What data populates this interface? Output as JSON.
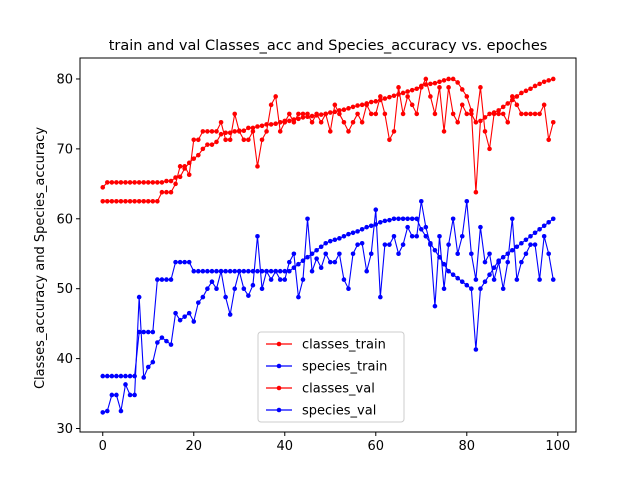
{
  "chart_data": {
    "type": "line",
    "title": "train and val Classes_acc and Species_accuracy vs. epoches",
    "xlabel": "",
    "ylabel": "Classes_accuracy and Species_accuracy",
    "xlim": [
      -5,
      104
    ],
    "ylim": [
      29.5,
      83
    ],
    "xticks": [
      0,
      20,
      40,
      60,
      80,
      100
    ],
    "yticks": [
      30,
      40,
      50,
      60,
      70,
      80
    ],
    "grid": false,
    "legend_position": "lower-center",
    "series": [
      {
        "name": "classes_train",
        "color": "#ff0000",
        "marker": "circle",
        "values": [
          64.5,
          65.2,
          65.2,
          65.2,
          65.2,
          65.2,
          65.2,
          65.2,
          65.2,
          65.2,
          65.2,
          65.2,
          65.2,
          65.2,
          65.4,
          65.4,
          65.9,
          66.0,
          67.2,
          68.0,
          68.6,
          69.1,
          70.0,
          70.6,
          70.6,
          71.0,
          72.1,
          72.3,
          72.3,
          72.5,
          72.6,
          72.6,
          73.0,
          73.0,
          73.2,
          73.3,
          73.5,
          73.5,
          73.6,
          73.8,
          74.0,
          74.0,
          74.2,
          74.3,
          74.5,
          74.6,
          74.7,
          74.8,
          74.9,
          75.0,
          75.2,
          75.3,
          75.5,
          75.6,
          75.8,
          76.0,
          76.2,
          76.3,
          76.5,
          76.7,
          76.8,
          77.0,
          77.2,
          77.4,
          77.6,
          77.8,
          78.0,
          78.2,
          78.4,
          78.6,
          79.0,
          79.2,
          79.3,
          79.4,
          79.6,
          79.8,
          80.0,
          80.0,
          79.5,
          78.5,
          77.5,
          75.5,
          63.8,
          74.0,
          74.5,
          75.0,
          75.2,
          75.5,
          76.0,
          76.5,
          77.0,
          77.5,
          78.0,
          78.3,
          78.6,
          79.0,
          79.3,
          79.6,
          79.8,
          80.0
        ]
      },
      {
        "name": "species_train",
        "color": "#0000ff",
        "marker": "circle",
        "values": [
          37.5,
          37.5,
          37.5,
          37.5,
          37.5,
          37.5,
          37.5,
          37.5,
          43.8,
          43.8,
          43.8,
          43.8,
          51.3,
          51.3,
          51.3,
          51.3,
          53.8,
          53.8,
          53.8,
          53.8,
          52.5,
          52.5,
          52.5,
          52.5,
          52.5,
          52.5,
          52.5,
          52.5,
          52.5,
          52.5,
          52.5,
          52.5,
          52.5,
          52.5,
          52.5,
          52.5,
          52.5,
          52.5,
          52.5,
          52.5,
          52.5,
          52.5,
          53.0,
          53.5,
          54.0,
          54.5,
          55.0,
          55.5,
          56.0,
          56.5,
          56.8,
          57.0,
          57.2,
          57.5,
          57.8,
          58.0,
          58.2,
          58.5,
          58.8,
          59.0,
          59.2,
          59.5,
          59.7,
          59.8,
          60.0,
          60.0,
          60.0,
          60.0,
          60.0,
          60.0,
          58.5,
          57.5,
          56.5,
          55.5,
          54.5,
          53.5,
          52.5,
          52.0,
          51.5,
          51.0,
          50.5,
          50.0,
          41.3,
          50.0,
          51.0,
          52.0,
          53.0,
          54.0,
          54.5,
          55.0,
          55.5,
          56.0,
          56.5,
          57.0,
          57.5,
          58.0,
          58.5,
          59.0,
          59.5,
          60.0
        ]
      },
      {
        "name": "classes_val",
        "color": "#ff0000",
        "marker": "circle",
        "values": [
          62.5,
          62.5,
          62.5,
          62.5,
          62.5,
          62.5,
          62.5,
          62.5,
          62.5,
          62.5,
          62.5,
          62.5,
          62.5,
          63.8,
          63.8,
          63.8,
          65.0,
          67.5,
          67.5,
          66.3,
          71.3,
          71.3,
          72.5,
          72.5,
          72.5,
          72.5,
          73.8,
          71.3,
          71.3,
          75.0,
          72.5,
          71.3,
          71.3,
          72.5,
          67.5,
          71.3,
          72.5,
          76.3,
          77.5,
          72.5,
          73.8,
          75.0,
          73.8,
          75.0,
          75.0,
          75.0,
          73.8,
          75.0,
          73.8,
          75.0,
          72.5,
          76.3,
          75.0,
          73.8,
          72.5,
          73.8,
          75.0,
          73.8,
          76.3,
          75.0,
          75.0,
          77.5,
          75.0,
          71.3,
          72.5,
          78.8,
          75.0,
          77.5,
          76.3,
          75.0,
          78.8,
          80.0,
          77.5,
          75.0,
          78.8,
          72.5,
          78.8,
          75.0,
          73.8,
          76.3,
          75.0,
          75.0,
          73.8,
          78.8,
          72.5,
          70.0,
          75.0,
          75.0,
          75.0,
          73.8,
          77.5,
          76.3,
          75.0,
          75.0,
          75.0,
          75.0,
          75.0,
          76.3,
          71.3,
          73.8
        ]
      },
      {
        "name": "species_val",
        "color": "#0000ff",
        "marker": "circle",
        "values": [
          32.3,
          32.5,
          34.8,
          34.8,
          32.5,
          36.3,
          34.8,
          34.8,
          48.8,
          37.3,
          38.8,
          39.5,
          42.3,
          43.0,
          42.5,
          42.0,
          46.5,
          45.5,
          46.0,
          46.5,
          45.3,
          48.0,
          48.8,
          50.0,
          51.0,
          50.0,
          52.5,
          48.8,
          46.3,
          50.0,
          52.5,
          50.0,
          49.0,
          50.5,
          57.5,
          50.0,
          52.5,
          51.3,
          52.5,
          51.3,
          51.3,
          53.8,
          55.0,
          48.8,
          51.3,
          60.0,
          52.5,
          54.3,
          53.0,
          55.0,
          53.8,
          53.8,
          55.0,
          51.3,
          50.0,
          55.0,
          56.3,
          56.5,
          52.5,
          55.0,
          61.3,
          48.8,
          56.3,
          56.3,
          57.5,
          55.0,
          56.3,
          58.8,
          57.5,
          57.5,
          62.5,
          58.8,
          56.3,
          47.5,
          57.5,
          50.0,
          56.3,
          60.0,
          55.0,
          57.5,
          62.5,
          55.0,
          51.3,
          58.8,
          53.8,
          55.0,
          51.3,
          53.8,
          50.0,
          53.8,
          60.0,
          51.3,
          53.8,
          55.0,
          56.3,
          56.3,
          51.3,
          57.5,
          55.0,
          51.3
        ]
      }
    ]
  }
}
